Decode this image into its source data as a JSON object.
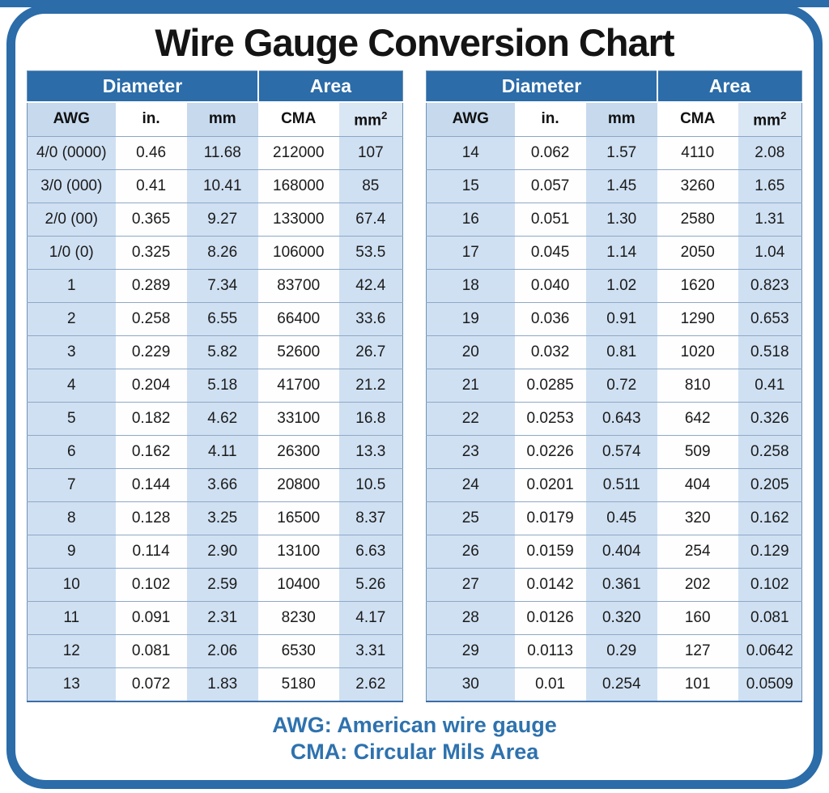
{
  "title": "Wire Gauge Conversion Chart",
  "colors": {
    "border_and_band_blue": "#2b6ca9",
    "light_column_blue": "#cfe0f2",
    "subheader_light_blue": "#c6d9ed",
    "row_divider": "#8fa9c6",
    "footnote_text_blue": "#2e72ae",
    "title_text": "#141414"
  },
  "chart_data": [
    {
      "type": "table",
      "title": "Wire gauge conversion, AWG 4/0 (0000) to 13",
      "group_headers": [
        {
          "label": "Diameter",
          "colspan": 3
        },
        {
          "label": "Area",
          "colspan": 2
        }
      ],
      "headers": [
        "AWG",
        "in.",
        "mm",
        "CMA",
        {
          "base": "mm",
          "sup": "2"
        }
      ],
      "rows": [
        [
          "4/0 (0000)",
          "0.46",
          "11.68",
          "212000",
          "107"
        ],
        [
          "3/0 (000)",
          "0.41",
          "10.41",
          "168000",
          "85"
        ],
        [
          "2/0 (00)",
          "0.365",
          "9.27",
          "133000",
          "67.4"
        ],
        [
          "1/0 (0)",
          "0.325",
          "8.26",
          "106000",
          "53.5"
        ],
        [
          "1",
          "0.289",
          "7.34",
          "83700",
          "42.4"
        ],
        [
          "2",
          "0.258",
          "6.55",
          "66400",
          "33.6"
        ],
        [
          "3",
          "0.229",
          "5.82",
          "52600",
          "26.7"
        ],
        [
          "4",
          "0.204",
          "5.18",
          "41700",
          "21.2"
        ],
        [
          "5",
          "0.182",
          "4.62",
          "33100",
          "16.8"
        ],
        [
          "6",
          "0.162",
          "4.11",
          "26300",
          "13.3"
        ],
        [
          "7",
          "0.144",
          "3.66",
          "20800",
          "10.5"
        ],
        [
          "8",
          "0.128",
          "3.25",
          "16500",
          "8.37"
        ],
        [
          "9",
          "0.114",
          "2.90",
          "13100",
          "6.63"
        ],
        [
          "10",
          "0.102",
          "2.59",
          "10400",
          "5.26"
        ],
        [
          "11",
          "0.091",
          "2.31",
          "8230",
          "4.17"
        ],
        [
          "12",
          "0.081",
          "2.06",
          "6530",
          "3.31"
        ],
        [
          "13",
          "0.072",
          "1.83",
          "5180",
          "2.62"
        ]
      ]
    },
    {
      "type": "table",
      "title": "Wire gauge conversion, AWG 14 to 30",
      "group_headers": [
        {
          "label": "Diameter",
          "colspan": 3
        },
        {
          "label": "Area",
          "colspan": 2
        }
      ],
      "headers": [
        "AWG",
        "in.",
        "mm",
        "CMA",
        {
          "base": "mm",
          "sup": "2"
        }
      ],
      "rows": [
        [
          "14",
          "0.062",
          "1.57",
          "4110",
          "2.08"
        ],
        [
          "15",
          "0.057",
          "1.45",
          "3260",
          "1.65"
        ],
        [
          "16",
          "0.051",
          "1.30",
          "2580",
          "1.31"
        ],
        [
          "17",
          "0.045",
          "1.14",
          "2050",
          "1.04"
        ],
        [
          "18",
          "0.040",
          "1.02",
          "1620",
          "0.823"
        ],
        [
          "19",
          "0.036",
          "0.91",
          "1290",
          "0.653"
        ],
        [
          "20",
          "0.032",
          "0.81",
          "1020",
          "0.518"
        ],
        [
          "21",
          "0.0285",
          "0.72",
          "810",
          "0.41"
        ],
        [
          "22",
          "0.0253",
          "0.643",
          "642",
          "0.326"
        ],
        [
          "23",
          "0.0226",
          "0.574",
          "509",
          "0.258"
        ],
        [
          "24",
          "0.0201",
          "0.511",
          "404",
          "0.205"
        ],
        [
          "25",
          "0.0179",
          "0.45",
          "320",
          "0.162"
        ],
        [
          "26",
          "0.0159",
          "0.404",
          "254",
          "0.129"
        ],
        [
          "27",
          "0.0142",
          "0.361",
          "202",
          "0.102"
        ],
        [
          "28",
          "0.0126",
          "0.320",
          "160",
          "0.081"
        ],
        [
          "29",
          "0.0113",
          "0.29",
          "127",
          "0.0642"
        ],
        [
          "30",
          "0.01",
          "0.254",
          "101",
          "0.0509"
        ]
      ]
    }
  ],
  "footnotes": [
    "AWG: American wire gauge",
    "CMA: Circular Mils Area"
  ]
}
